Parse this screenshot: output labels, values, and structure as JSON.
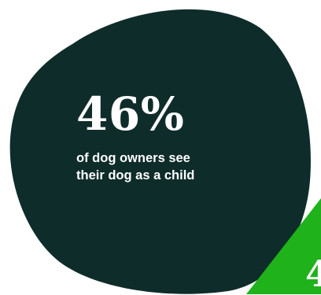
{
  "colors": {
    "blob": "#0e2c2a",
    "accent_green": "#1fb21b",
    "text": "#ffffff",
    "background": "#ffffff"
  },
  "stat_primary": {
    "value": "46%",
    "caption_line1": "of dog owners see",
    "caption_line2": "their dog as a child"
  },
  "stat_secondary": {
    "value_partial": "4"
  }
}
